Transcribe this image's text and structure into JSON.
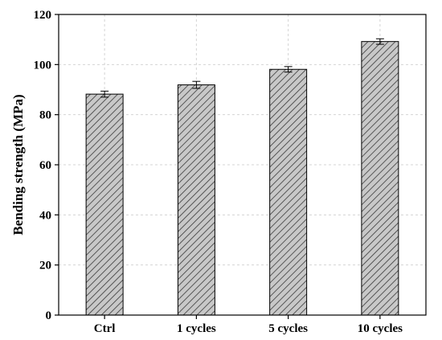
{
  "chart_data": {
    "type": "bar",
    "title": "",
    "xlabel": "",
    "ylabel": "Bending strength (MPa)",
    "categories": [
      "Ctrl",
      "1 cycles",
      "5 cycles",
      "10 cycles"
    ],
    "values": [
      88.2,
      91.9,
      98.1,
      109.2
    ],
    "errors": [
      1.2,
      1.4,
      1.1,
      1.1
    ],
    "ylim": [
      0,
      120
    ],
    "yticks": [
      0,
      20,
      40,
      60,
      80,
      100,
      120
    ],
    "grid": true,
    "legend": "none",
    "bar_fill": "#c8c8c8",
    "bar_hatch": "diagonal",
    "bar_stroke": "#000000"
  }
}
